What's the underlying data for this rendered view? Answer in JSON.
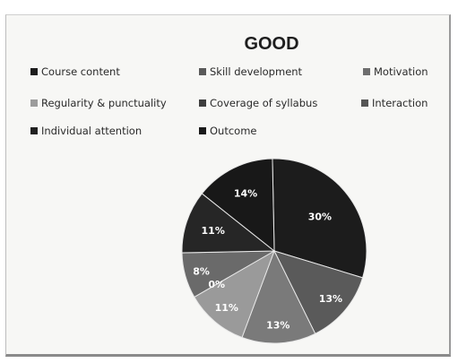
{
  "chart_data": {
    "type": "pie",
    "title": "GOOD",
    "legend_placement": "top",
    "slices": [
      {
        "name": "Course content",
        "value": 30,
        "label": "30%",
        "color": "#1c1c1c"
      },
      {
        "name": "Skill development",
        "value": 13,
        "label": "13%",
        "color": "#5a5a5a"
      },
      {
        "name": "Motivation",
        "value": 0,
        "label": "",
        "color": "#6e6e6e"
      },
      {
        "name": "Regularity & punctuality",
        "value": 13,
        "label": "13%",
        "color": "#7a7a7a"
      },
      {
        "name": "Coverage of syllabus",
        "value": 11,
        "label": "11%",
        "color": "#9a9a9a"
      },
      {
        "name": "Interaction",
        "value": 0,
        "label": "0%",
        "color": "#3a3a3a"
      },
      {
        "name": "Individual attention",
        "value": 8,
        "label": "8%",
        "color": "#6a6a6a"
      },
      {
        "name": "Outcome",
        "value": 11,
        "label": "11%",
        "color": "#262626"
      },
      {
        "name": "",
        "value": 14,
        "label": "14%",
        "color": "#181818"
      }
    ]
  }
}
